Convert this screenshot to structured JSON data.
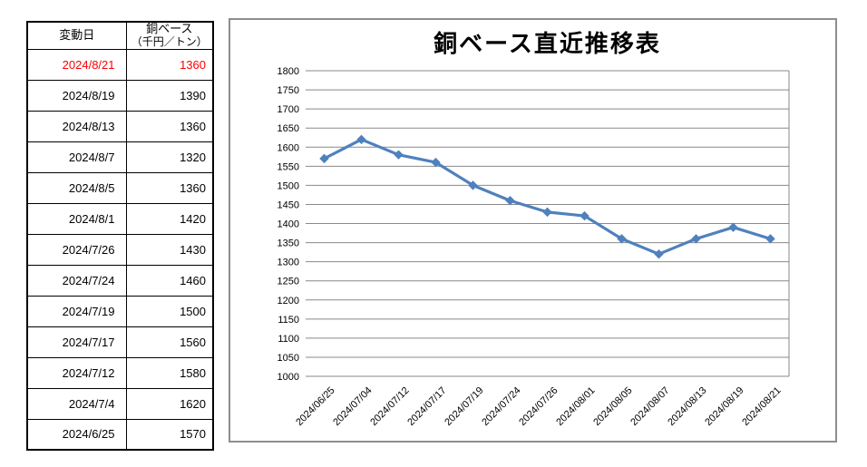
{
  "page": {
    "background": "#FFFFFF"
  },
  "table": {
    "header": {
      "date_label": "変動日",
      "value_label_line1": "銅ベース",
      "value_label_line2": "（千円／トン）"
    },
    "highlight_color": "#FF0000",
    "rows": [
      {
        "date": "2024/8/21",
        "value": "1360",
        "highlight": true
      },
      {
        "date": "2024/8/19",
        "value": "1390",
        "highlight": false
      },
      {
        "date": "2024/8/13",
        "value": "1360",
        "highlight": false
      },
      {
        "date": "2024/8/7",
        "value": "1320",
        "highlight": false
      },
      {
        "date": "2024/8/5",
        "value": "1360",
        "highlight": false
      },
      {
        "date": "2024/8/1",
        "value": "1420",
        "highlight": false
      },
      {
        "date": "2024/7/26",
        "value": "1430",
        "highlight": false
      },
      {
        "date": "2024/7/24",
        "value": "1460",
        "highlight": false
      },
      {
        "date": "2024/7/19",
        "value": "1500",
        "highlight": false
      },
      {
        "date": "2024/7/17",
        "value": "1560",
        "highlight": false
      },
      {
        "date": "2024/7/12",
        "value": "1580",
        "highlight": false
      },
      {
        "date": "2024/7/4",
        "value": "1620",
        "highlight": false
      },
      {
        "date": "2024/6/25",
        "value": "1570",
        "highlight": false
      }
    ]
  },
  "chart_data": {
    "type": "line",
    "title": "銅ベース直近推移表",
    "categories": [
      "2024/06/25",
      "2024/07/04",
      "2024/07/12",
      "2024/07/17",
      "2024/07/19",
      "2024/07/24",
      "2024/07/26",
      "2024/08/01",
      "2024/08/05",
      "2024/08/07",
      "2024/08/13",
      "2024/08/19",
      "2024/08/21"
    ],
    "values": [
      1570,
      1620,
      1580,
      1560,
      1500,
      1460,
      1430,
      1420,
      1360,
      1320,
      1360,
      1390,
      1360
    ],
    "xlabel": "",
    "ylabel": "",
    "ylim": [
      1000,
      1800
    ],
    "ytick_step": 50,
    "grid": true,
    "legend": "none",
    "line_color": "#4F81BD",
    "marker": "diamond",
    "gridline_color": "#898989",
    "axis_text_color": "#000000"
  }
}
